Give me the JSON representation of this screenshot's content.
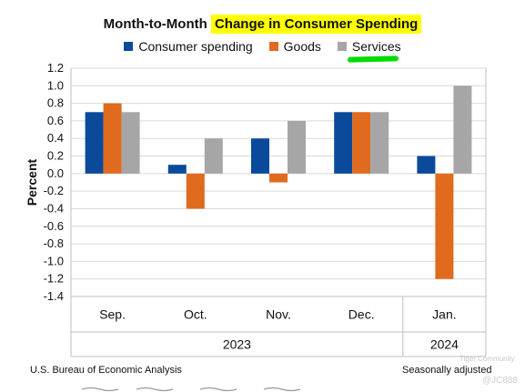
{
  "title": {
    "part1": "Month-to-Month",
    "highlighted": "Change in Consumer Spending"
  },
  "legend": [
    {
      "label": "Consumer spending",
      "color": "#0b4a9a"
    },
    {
      "label": "Goods",
      "color": "#e06a1e"
    },
    {
      "label": "Services",
      "color": "#a6a6a6"
    }
  ],
  "annotation": {
    "underline_color": "#00dd00",
    "highlight_color": "#ffff00"
  },
  "footer": {
    "source": "U.S. Bureau of Economic Analysis",
    "note": "Seasonally adjusted"
  },
  "watermark": {
    "brand": "Tiger Community",
    "user": "@JC888"
  },
  "chart_data": {
    "type": "bar",
    "title": "Month-to-Month Change in Consumer Spending",
    "ylabel": "Percent",
    "xlabel": "",
    "ylim": [
      -1.4,
      1.2
    ],
    "yticks": [
      -1.4,
      -1.2,
      -1.0,
      -0.8,
      -0.6,
      -0.4,
      -0.2,
      0.0,
      0.2,
      0.4,
      0.6,
      0.8,
      1.0,
      1.2
    ],
    "categories": [
      "Sep.",
      "Oct.",
      "Nov.",
      "Dec.",
      "Jan."
    ],
    "year_groups": [
      {
        "label": "2023",
        "categories": [
          "Sep.",
          "Oct.",
          "Nov.",
          "Dec."
        ]
      },
      {
        "label": "2024",
        "categories": [
          "Jan."
        ]
      }
    ],
    "series": [
      {
        "name": "Consumer spending",
        "color": "#0b4a9a",
        "values": [
          0.7,
          0.1,
          0.4,
          0.7,
          0.2
        ]
      },
      {
        "name": "Goods",
        "color": "#e06a1e",
        "values": [
          0.8,
          -0.4,
          -0.1,
          0.7,
          -1.2
        ]
      },
      {
        "name": "Services",
        "color": "#a6a6a6",
        "values": [
          0.7,
          0.4,
          0.6,
          0.7,
          1.0
        ]
      }
    ],
    "grid": true,
    "legend_position": "top-center"
  }
}
